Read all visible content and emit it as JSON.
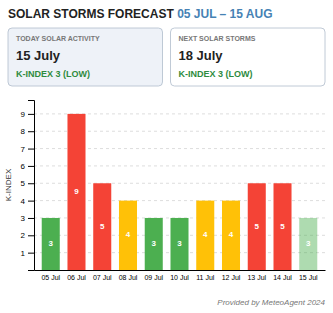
{
  "chart_data": {
    "type": "bar",
    "title": "SOLAR STORMS FORECAST ",
    "subtitle": "05 JUL – 15 AUG",
    "annotations": [
      "TODAY SOLAR ACTIVITY",
      "15 July",
      "K-INDEX 3 (LOW)",
      "NEXT SOLAR STORMS",
      "18 July",
      "K-INDEX 3 (LOW)",
      "Provided by MeteoAgent 2024"
    ],
    "categories": [
      "05 Jul",
      "06 Jul",
      "07 Jul",
      "08 Jul",
      "09 Jul",
      "10 Jul",
      "11 Jul",
      "12 Jul",
      "13 Jul",
      "14 Jul",
      "15 Jul"
    ],
    "values": [
      3,
      9,
      5,
      4,
      3,
      3,
      4,
      4,
      5,
      5,
      3
    ],
    "colors": [
      "#4caf50",
      "#f44336",
      "#f44336",
      "#ffc107",
      "#4caf50",
      "#4caf50",
      "#ffc107",
      "#ffc107",
      "#f44336",
      "#f44336",
      "#4caf50"
    ],
    "y_label": "K-INDEX",
    "ylim": [
      0,
      9.8
    ],
    "yticks": [
      1,
      2,
      3,
      4,
      5,
      6,
      7,
      8,
      9
    ],
    "grid": true,
    "data_labels": true
  }
}
